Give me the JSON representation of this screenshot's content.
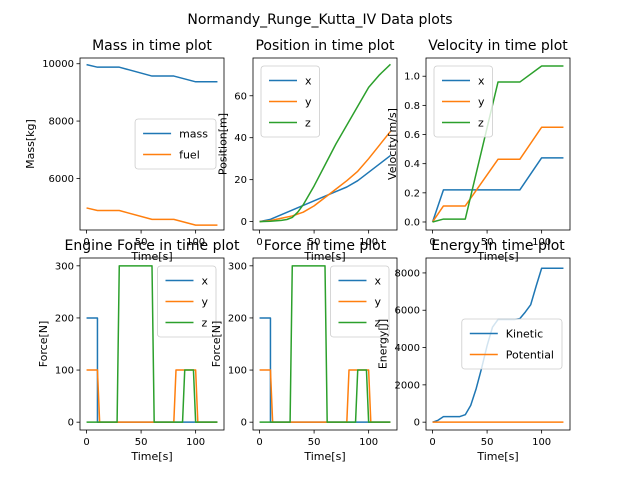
{
  "figure_title": "Normandy_Runge_Kutta_IV Data plots",
  "colors": {
    "c0": "#1f77b4",
    "c1": "#ff7f0e",
    "c2": "#2ca02c"
  },
  "chart_data": [
    {
      "id": "mass",
      "type": "line",
      "title": "Mass in time plot",
      "xlabel": "Time[s]",
      "ylabel": "Mass[kg]",
      "xlim": [
        -6,
        126
      ],
      "ylim": [
        4200,
        10200
      ],
      "xticks": [
        0,
        50,
        100
      ],
      "yticks": [
        6000,
        8000,
        10000
      ],
      "legend_loc": "center-right",
      "series": [
        {
          "name": "mass",
          "color": "#1f77b4",
          "x": [
            0,
            10,
            30,
            60,
            80,
            100,
            120
          ],
          "y": [
            9970,
            9880,
            9880,
            9570,
            9570,
            9370,
            9370
          ]
        },
        {
          "name": "fuel",
          "color": "#ff7f0e",
          "x": [
            0,
            10,
            30,
            60,
            80,
            100,
            120
          ],
          "y": [
            4970,
            4880,
            4880,
            4570,
            4570,
            4370,
            4370
          ]
        }
      ]
    },
    {
      "id": "position",
      "type": "line",
      "title": "Position in time plot",
      "xlabel": "Time[s]",
      "ylabel": "Position[m]",
      "xlim": [
        -6,
        126
      ],
      "ylim": [
        -4,
        78
      ],
      "xticks": [
        0,
        50,
        100
      ],
      "yticks": [
        0,
        20,
        40,
        60
      ],
      "legend_loc": "upper-left",
      "series": [
        {
          "name": "x",
          "color": "#1f77b4",
          "x": [
            0,
            10,
            20,
            30,
            40,
            50,
            60,
            70,
            80,
            90,
            100,
            110,
            120
          ],
          "y": [
            0,
            1.1,
            3.3,
            5.5,
            7.7,
            9.9,
            12.1,
            14.3,
            16.5,
            19.5,
            23.5,
            27.5,
            31.5
          ]
        },
        {
          "name": "y",
          "color": "#ff7f0e",
          "x": [
            0,
            10,
            20,
            30,
            40,
            50,
            60,
            70,
            80,
            90,
            100,
            110,
            120
          ],
          "y": [
            0,
            0.5,
            1.6,
            2.7,
            4.5,
            7.5,
            11.5,
            15.5,
            19.5,
            24,
            30,
            36.5,
            43
          ]
        },
        {
          "name": "z",
          "color": "#2ca02c",
          "x": [
            0,
            10,
            20,
            25,
            30,
            35,
            40,
            50,
            60,
            70,
            80,
            90,
            100,
            110,
            120
          ],
          "y": [
            0,
            0.2,
            0.6,
            1,
            2,
            4.5,
            8,
            17,
            27,
            37,
            46,
            55,
            64,
            70,
            75
          ]
        }
      ]
    },
    {
      "id": "velocity",
      "type": "line",
      "title": "Velocity in time plot",
      "xlabel": "Time[s]",
      "ylabel": "Velocity[m/s]",
      "xlim": [
        -6,
        126
      ],
      "ylim": [
        -0.055,
        1.125
      ],
      "xticks": [
        0,
        50,
        100
      ],
      "yticks": [
        0.0,
        0.2,
        0.4,
        0.6,
        0.8,
        1.0
      ],
      "ytick_labels": [
        "0.0",
        "0.2",
        "0.4",
        "0.6",
        "0.8",
        "1.0"
      ],
      "legend_loc": "upper-left",
      "series": [
        {
          "name": "x",
          "color": "#1f77b4",
          "x": [
            0,
            10,
            80,
            100,
            120
          ],
          "y": [
            0,
            0.22,
            0.22,
            0.44,
            0.44
          ]
        },
        {
          "name": "y",
          "color": "#ff7f0e",
          "x": [
            0,
            10,
            30,
            60,
            80,
            100,
            120
          ],
          "y": [
            0,
            0.11,
            0.11,
            0.43,
            0.43,
            0.65,
            0.65
          ]
        },
        {
          "name": "z",
          "color": "#2ca02c",
          "x": [
            0,
            10,
            30,
            60,
            80,
            100,
            120
          ],
          "y": [
            0,
            0.02,
            0.02,
            0.96,
            0.96,
            1.07,
            1.07
          ]
        }
      ]
    },
    {
      "id": "engine_force",
      "type": "line",
      "title": "Engine Force in time plot",
      "xlabel": "Time[s]",
      "ylabel": "Force[N]",
      "xlim": [
        -6,
        126
      ],
      "ylim": [
        -15,
        315
      ],
      "xticks": [
        0,
        50,
        100
      ],
      "yticks": [
        0,
        100,
        200,
        300
      ],
      "legend_loc": "upper-right",
      "series": [
        {
          "name": "x",
          "color": "#1f77b4",
          "x": [
            0,
            10,
            10,
            120
          ],
          "y": [
            200,
            200,
            0,
            0
          ]
        },
        {
          "name": "y",
          "color": "#ff7f0e",
          "x": [
            0,
            10,
            12,
            80,
            82,
            100,
            102,
            120
          ],
          "y": [
            100,
            100,
            0,
            0,
            100,
            100,
            0,
            0
          ]
        },
        {
          "name": "z",
          "color": "#2ca02c",
          "x": [
            0,
            28,
            30,
            60,
            62,
            88,
            90,
            98,
            100,
            120
          ],
          "y": [
            0,
            0,
            300,
            300,
            0,
            0,
            100,
            100,
            0,
            0
          ]
        }
      ]
    },
    {
      "id": "force",
      "type": "line",
      "title": "Force in time plot",
      "xlabel": "Time[s]",
      "ylabel": "Force[N]",
      "xlim": [
        -6,
        126
      ],
      "ylim": [
        -15,
        315
      ],
      "xticks": [
        0,
        50,
        100
      ],
      "yticks": [
        0,
        100,
        200,
        300
      ],
      "legend_loc": "upper-right",
      "series": [
        {
          "name": "x",
          "color": "#1f77b4",
          "x": [
            0,
            10,
            10,
            120
          ],
          "y": [
            200,
            200,
            0,
            0
          ]
        },
        {
          "name": "y",
          "color": "#ff7f0e",
          "x": [
            0,
            10,
            12,
            80,
            82,
            100,
            102,
            120
          ],
          "y": [
            100,
            100,
            0,
            0,
            100,
            100,
            0,
            0
          ]
        },
        {
          "name": "z",
          "color": "#2ca02c",
          "x": [
            0,
            28,
            30,
            60,
            62,
            88,
            90,
            98,
            100,
            120
          ],
          "y": [
            0,
            0,
            300,
            300,
            0,
            0,
            100,
            100,
            0,
            0
          ]
        }
      ]
    },
    {
      "id": "energy",
      "type": "line",
      "title": "Energy in time plot",
      "xlabel": "Time[s]",
      "ylabel": "Energy[J]",
      "xlim": [
        -6,
        126
      ],
      "ylim": [
        -420,
        8800
      ],
      "xticks": [
        0,
        50,
        100
      ],
      "yticks": [
        0,
        2000,
        4000,
        6000,
        8000
      ],
      "legend_loc": "center-right",
      "series": [
        {
          "name": "Kinetic",
          "color": "#1f77b4",
          "x": [
            0,
            5,
            10,
            15,
            20,
            25,
            30,
            35,
            40,
            45,
            50,
            55,
            60,
            65,
            70,
            75,
            80,
            85,
            90,
            95,
            100,
            110,
            120
          ],
          "y": [
            0,
            100,
            300,
            300,
            300,
            300,
            400,
            900,
            1800,
            2900,
            4100,
            5100,
            5500,
            5500,
            5500,
            5500,
            5550,
            5900,
            6300,
            7300,
            8250,
            8250,
            8250
          ]
        },
        {
          "name": "Potential",
          "color": "#ff7f0e",
          "x": [
            0,
            120
          ],
          "y": [
            0,
            0
          ]
        }
      ]
    }
  ]
}
